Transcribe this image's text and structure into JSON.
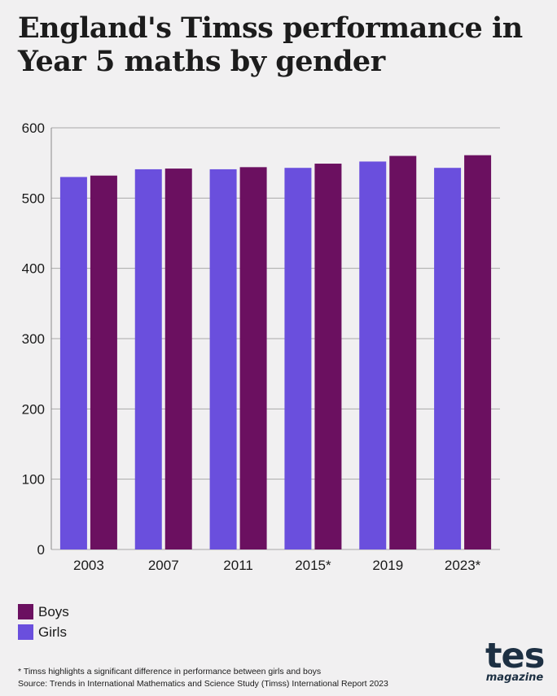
{
  "title": "England's Timss performance in Year 5 maths by gender",
  "chart_data": {
    "type": "bar",
    "categories": [
      "2003",
      "2007",
      "2011",
      "2015*",
      "2019",
      "2023*"
    ],
    "series": [
      {
        "name": "Girls",
        "color": "#6a4fdd",
        "values": [
          530,
          541,
          541,
          543,
          552,
          543
        ]
      },
      {
        "name": "Boys",
        "color": "#6b1060",
        "values": [
          532,
          542,
          544,
          549,
          560,
          561
        ]
      }
    ],
    "ylim": [
      0,
      600
    ],
    "yticks": [
      0,
      100,
      200,
      300,
      400,
      500,
      600
    ],
    "grid": true,
    "legend": "bottom-left"
  },
  "legend": [
    {
      "label": "Boys",
      "color": "#6b1060"
    },
    {
      "label": "Girls",
      "color": "#6a4fdd"
    }
  ],
  "footnotes": {
    "note": "* Timss highlights a significant difference in performance between girls and boys",
    "source": "Source: Trends in International Mathematics and Science Study (Timss) International Report 2023"
  },
  "logo": {
    "main": "tes",
    "sub": "magazine"
  }
}
